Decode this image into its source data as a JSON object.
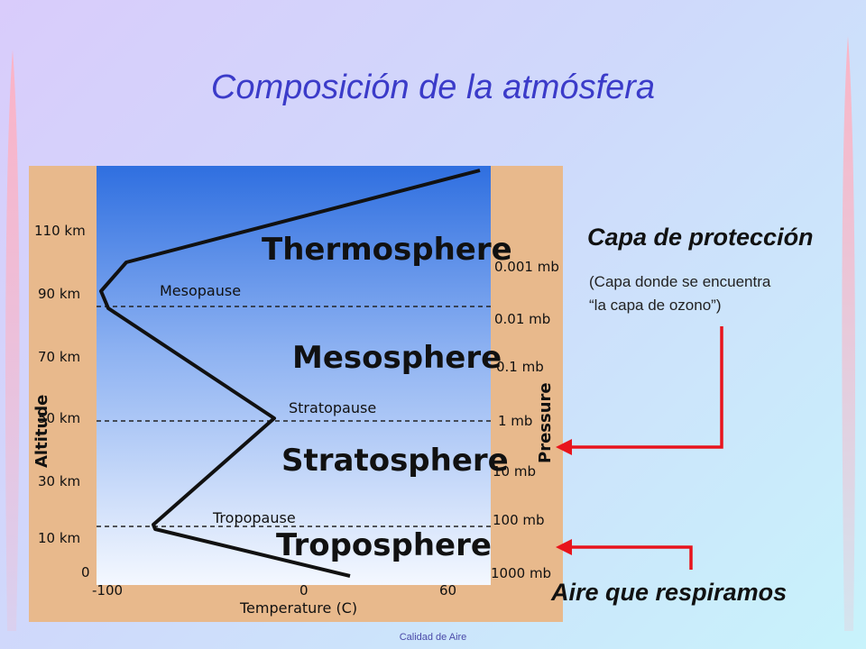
{
  "title": "Composición de la atmósfera",
  "diagram": {
    "altitude_axis_label": "Altitude",
    "pressure_axis_label": "Pressure",
    "temperature_axis_label": "Temperature (C)",
    "altitude_ticks": [
      "110 km",
      "90 km",
      "70 km",
      "50 km",
      "30 km",
      "10 km",
      "0"
    ],
    "pressure_ticks": [
      "0.001 mb",
      "0.01 mb",
      "0.1 mb",
      "1 mb",
      "10 mb",
      "100 mb",
      "1000 mb"
    ],
    "temperature_ticks": [
      "-100",
      "0",
      "60"
    ],
    "layers": {
      "thermosphere": "Thermosphere",
      "mesosphere": "Mesosphere",
      "stratosphere": "Stratosphere",
      "troposphere": "Troposphere"
    },
    "boundaries": {
      "mesopause": "Mesopause",
      "stratopause": "Stratopause",
      "tropopause": "Tropopause"
    },
    "colors": {
      "frame": "#e8b98c",
      "sky_top": "#2f6fe0",
      "sky_bottom": "#f4f8ff"
    }
  },
  "callouts": {
    "protection_title": "Capa de protección",
    "protection_note_line1": "(Capa donde se encuentra",
    "protection_note_line2": "“la capa de ozono”)",
    "air_label": "Aire que respiramos",
    "arrow_color": "#e8141c"
  },
  "footer": "Calidad de Aire"
}
